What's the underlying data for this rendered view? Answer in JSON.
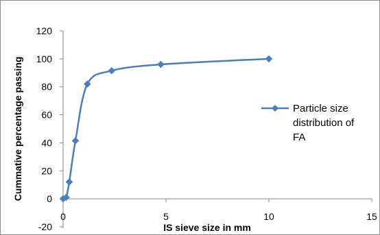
{
  "chart_data": {
    "type": "scatter",
    "title": "",
    "xlabel": "IS sieve size in mm",
    "ylabel": "Cummative percentage passing",
    "xlim": [
      0,
      15
    ],
    "ylim": [
      -20,
      120
    ],
    "x_ticks": [
      0,
      5,
      10,
      15
    ],
    "y_ticks": [
      -20,
      0,
      20,
      40,
      60,
      80,
      100,
      120
    ],
    "grid": false,
    "legend_position": "right",
    "series": [
      {
        "name": "Particle size distribution of FA",
        "legend_lines": [
          "Particle size",
          "distribution of",
          "FA"
        ],
        "color": "#4a7ebb",
        "marker": "diamond",
        "smooth": true,
        "x": [
          0,
          0.15,
          0.3,
          0.6,
          1.18,
          2.36,
          4.75,
          10
        ],
        "y": [
          0,
          1,
          12,
          41.5,
          82,
          91.5,
          96,
          100
        ]
      }
    ]
  }
}
